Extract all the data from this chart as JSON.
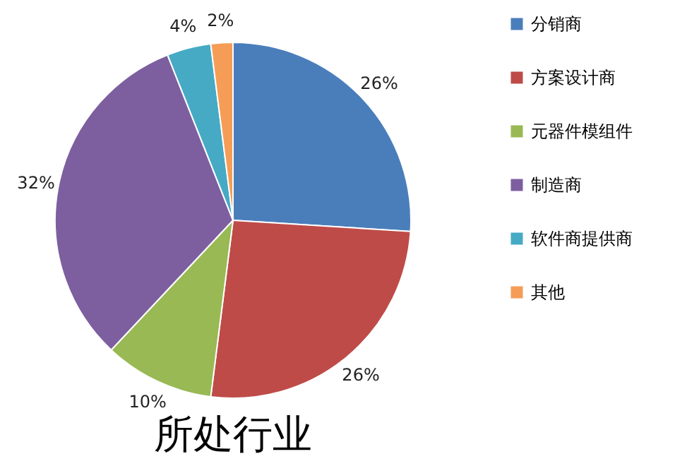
{
  "chart_data": {
    "type": "pie",
    "title": "所处行业",
    "categories": [
      "分销商",
      "方案设计商",
      "元器件模组件",
      "制造商",
      "软件商提供商",
      "其他"
    ],
    "values": [
      26,
      26,
      10,
      32,
      4,
      2
    ],
    "value_labels": [
      "26%",
      "26%",
      "10%",
      "32%",
      "4%",
      "2%"
    ],
    "colors": [
      "#4a7ebb",
      "#be4b48",
      "#98b954",
      "#7d5fa0",
      "#46aac5",
      "#f59d56"
    ],
    "legend": "right"
  }
}
